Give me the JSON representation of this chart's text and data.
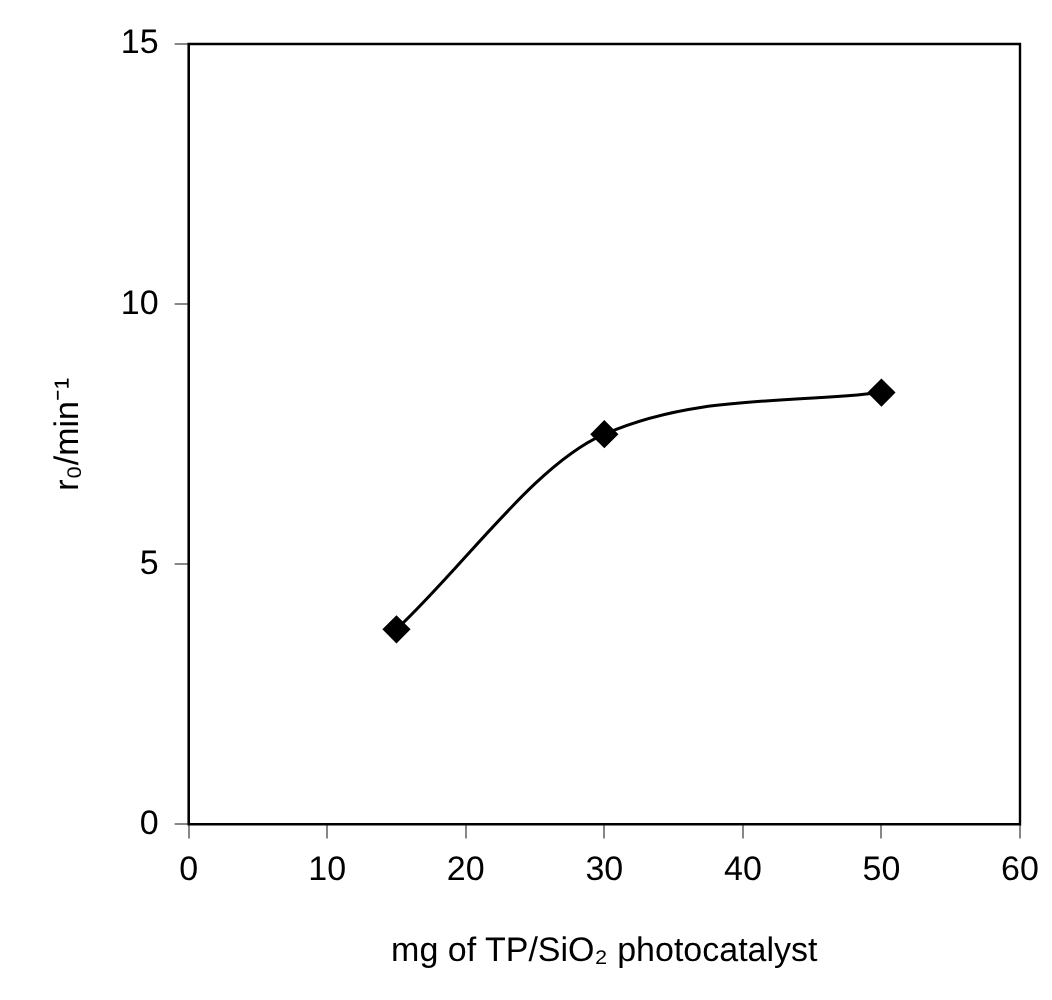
{
  "chart_data": {
    "type": "line",
    "xlabel": "mg of TP/SiO₂ photocatalyst",
    "ylabel": "r₀/min⁻¹",
    "x": [
      15,
      30,
      50
    ],
    "series": [
      {
        "color": "#000000",
        "values": [
          3.75,
          7.5,
          8.3
        ]
      }
    ],
    "xlim": [
      0,
      60
    ],
    "xticks": [
      0,
      10,
      20,
      30,
      40,
      50,
      60
    ],
    "ylim": [
      0,
      15
    ],
    "yticks": [
      0,
      5,
      10,
      15
    ],
    "grid": false,
    "legend": false,
    "marker": "diamond",
    "line_style": "solid"
  }
}
